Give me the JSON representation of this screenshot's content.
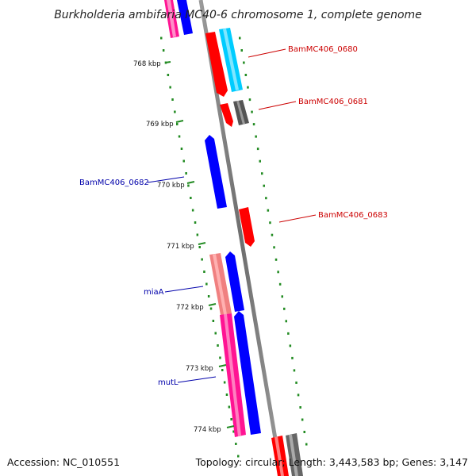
{
  "title": "Burkholderia ambifaria MC40-6 chromosome 1, complete genome",
  "footer": {
    "accession": "Accession: NC_010551",
    "summary": "Topology: circular; Length: 3,443,583 bp; Genes: 3,147"
  },
  "ticks": [
    "768 kbp",
    "769 kbp",
    "770 kbp",
    "771 kbp",
    "772 kbp",
    "773 kbp",
    "774 kbp"
  ],
  "labels": [
    "BamMC406_0680",
    "BamMC406_0681",
    "BamMC406_0682",
    "BamMC406_0683",
    "miaA",
    "mutL"
  ],
  "colors": {
    "red": "#ff0000",
    "blue": "#0000ff",
    "cyan": "#00ccff",
    "grey": "#777777",
    "magenta": "#ff1493",
    "salmon": "#f08080",
    "green": "#228b22",
    "label_red": "#cc0000",
    "label_blue": "#0000aa"
  }
}
